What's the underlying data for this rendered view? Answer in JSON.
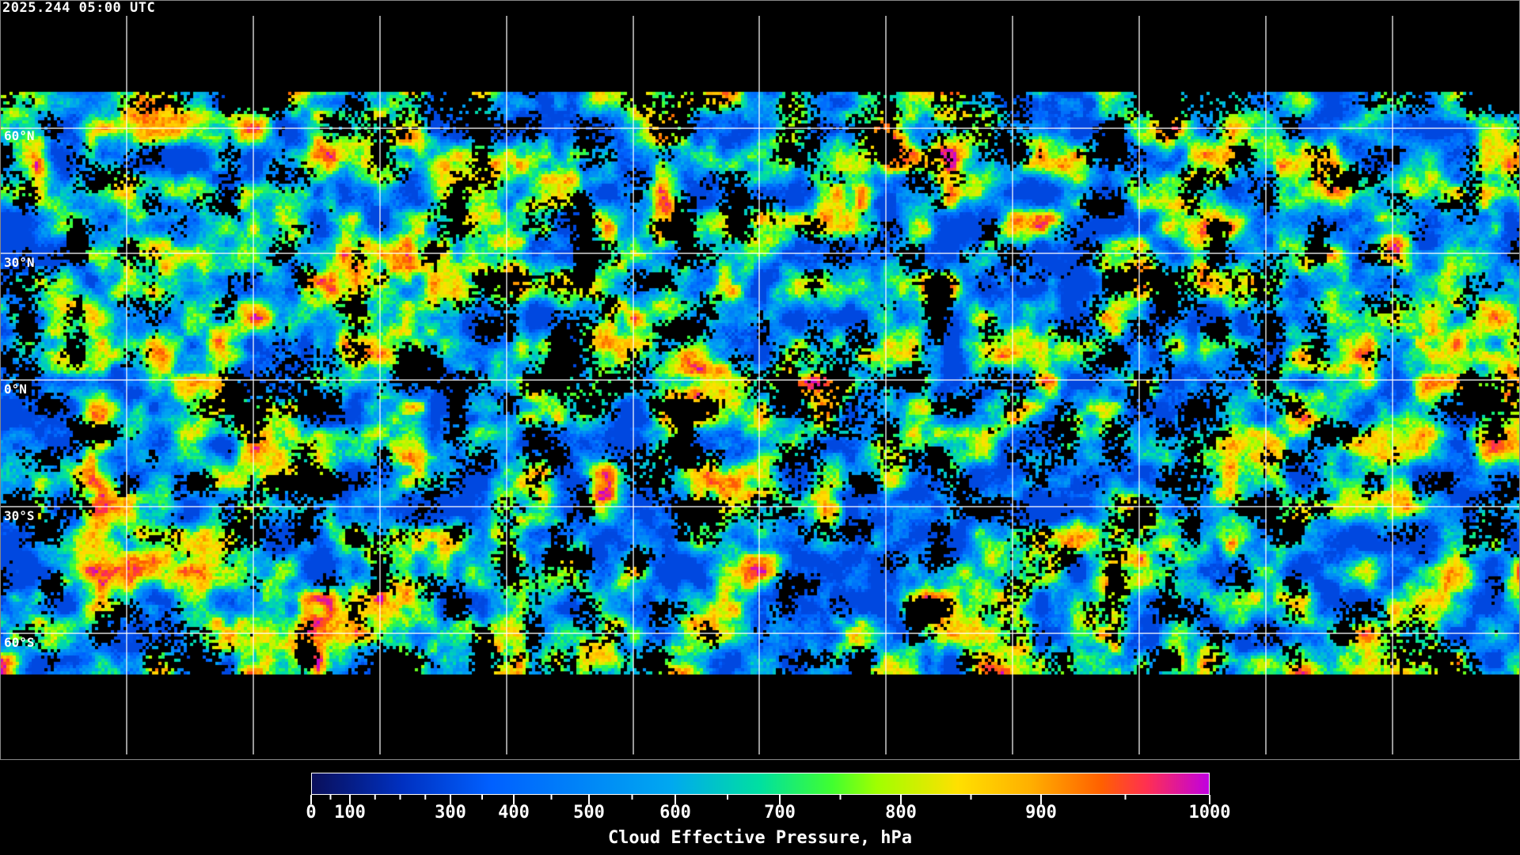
{
  "timestamp": "2025.244 05:00 UTC",
  "lat_labels": [
    "60°N",
    "30°N",
    "0°N",
    "30°S",
    "60°S"
  ],
  "colorbar": {
    "title": "Cloud Effective Pressure, hPa",
    "range": [
      0,
      1000
    ],
    "tick_labels": [
      "0",
      "100",
      "300",
      "400",
      "500",
      "600",
      "700",
      "800",
      "900",
      "1000"
    ],
    "minor_ticks": [
      50,
      150,
      200,
      250,
      350,
      450,
      550,
      650,
      750,
      850,
      950
    ],
    "palette": [
      "#0a0f5a",
      "#0030c0",
      "#0060ff",
      "#00a8f0",
      "#00e0a0",
      "#40ff30",
      "#a0ff00",
      "#ffe000",
      "#ffb000",
      "#ff6000",
      "#ff3050",
      "#c000e0"
    ]
  },
  "colors": {
    "background": "#000000",
    "grid": "#ffffff",
    "coastline": "#ffffff"
  }
}
